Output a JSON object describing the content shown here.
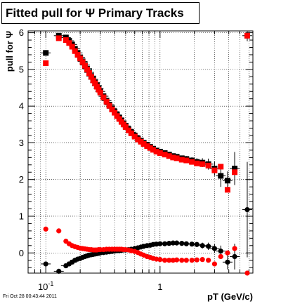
{
  "chart_data": {
    "type": "scatter",
    "title": "Fitted pull for  Ψ   Primary Tracks",
    "xlabel": "pT (GeV/c)",
    "ylabel": "pull for Ψ",
    "xscale": "log",
    "xlim": [
      0.07,
      6.5
    ],
    "ylim": [
      -0.55,
      6.05
    ],
    "yticks": [
      0,
      1,
      2,
      3,
      4,
      5,
      6
    ],
    "ytick_labels": [
      "0",
      "1",
      "2",
      "3",
      "4",
      "5",
      "6"
    ],
    "xticks_labeled": [
      0.1,
      1
    ],
    "xtick_labels": [
      {
        "base": "10",
        "exp": "-1"
      },
      {
        "base": "1",
        "exp": ""
      }
    ],
    "grid": true,
    "series": [
      {
        "color": "#000000",
        "marker": "square",
        "x": [
          0.1,
          0.13,
          0.15,
          0.16,
          0.17,
          0.18,
          0.19,
          0.2,
          0.21,
          0.22,
          0.23,
          0.24,
          0.25,
          0.26,
          0.27,
          0.28,
          0.29,
          0.3,
          0.32,
          0.34,
          0.36,
          0.38,
          0.4,
          0.42,
          0.44,
          0.46,
          0.48,
          0.5,
          0.53,
          0.56,
          0.6,
          0.64,
          0.68,
          0.72,
          0.77,
          0.82,
          0.87,
          0.93,
          1.0,
          1.1,
          1.2,
          1.3,
          1.4,
          1.55,
          1.7,
          1.9,
          2.1,
          2.35,
          2.65,
          3.0,
          3.4,
          3.9,
          4.5,
          5.8
        ],
        "y": [
          5.45,
          5.92,
          5.87,
          5.78,
          5.68,
          5.56,
          5.45,
          5.33,
          5.22,
          5.12,
          5.02,
          4.92,
          4.82,
          4.73,
          4.64,
          4.56,
          4.48,
          4.4,
          4.27,
          4.15,
          4.04,
          3.94,
          3.85,
          3.76,
          3.68,
          3.6,
          3.53,
          3.46,
          3.37,
          3.29,
          3.2,
          3.12,
          3.06,
          3.0,
          2.95,
          2.89,
          2.84,
          2.79,
          2.76,
          2.72,
          2.68,
          2.64,
          2.62,
          2.58,
          2.56,
          2.52,
          2.48,
          2.46,
          2.42,
          2.3,
          2.1,
          1.97,
          2.3,
          5.92
        ],
        "yerr": [
          0.06,
          0.06,
          0.05,
          0.04,
          0.04,
          0.04,
          0.04,
          0.03,
          0.03,
          0.03,
          0.03,
          0.03,
          0.03,
          0.03,
          0.03,
          0.03,
          0.03,
          0.03,
          0.03,
          0.03,
          0.03,
          0.03,
          0.03,
          0.03,
          0.03,
          0.03,
          0.03,
          0.03,
          0.03,
          0.03,
          0.04,
          0.04,
          0.04,
          0.04,
          0.04,
          0.05,
          0.05,
          0.05,
          0.05,
          0.06,
          0.06,
          0.06,
          0.07,
          0.07,
          0.08,
          0.09,
          0.1,
          0.12,
          0.15,
          0.2,
          0.3,
          0.25,
          0.45,
          0.15
        ]
      },
      {
        "color": "#ff0000",
        "marker": "square",
        "x": [
          0.1,
          0.13,
          0.15,
          0.16,
          0.17,
          0.18,
          0.19,
          0.2,
          0.21,
          0.22,
          0.23,
          0.24,
          0.25,
          0.26,
          0.27,
          0.28,
          0.29,
          0.3,
          0.32,
          0.34,
          0.36,
          0.38,
          0.4,
          0.42,
          0.44,
          0.46,
          0.48,
          0.5,
          0.53,
          0.56,
          0.6,
          0.64,
          0.68,
          0.72,
          0.77,
          0.82,
          0.87,
          0.93,
          1.0,
          1.1,
          1.2,
          1.3,
          1.4,
          1.55,
          1.7,
          1.9,
          2.1,
          2.35,
          2.65,
          3.0,
          3.4,
          3.9,
          4.5,
          5.8
        ],
        "y": [
          5.17,
          5.85,
          5.8,
          5.72,
          5.62,
          5.5,
          5.4,
          5.3,
          5.2,
          5.1,
          5.0,
          4.9,
          4.8,
          4.7,
          4.62,
          4.53,
          4.45,
          4.37,
          4.24,
          4.12,
          4.01,
          3.91,
          3.82,
          3.73,
          3.65,
          3.57,
          3.5,
          3.43,
          3.34,
          3.26,
          3.17,
          3.09,
          3.03,
          2.97,
          2.91,
          2.86,
          2.81,
          2.76,
          2.72,
          2.68,
          2.64,
          2.6,
          2.58,
          2.54,
          2.52,
          2.48,
          2.44,
          2.42,
          2.38,
          2.25,
          2.35,
          1.72,
          2.2,
          5.92
        ]
      },
      {
        "color": "#000000",
        "marker": "circle",
        "x": [
          0.1,
          0.13,
          0.15,
          0.16,
          0.17,
          0.18,
          0.19,
          0.2,
          0.21,
          0.22,
          0.23,
          0.24,
          0.25,
          0.26,
          0.27,
          0.28,
          0.29,
          0.3,
          0.32,
          0.34,
          0.36,
          0.38,
          0.4,
          0.42,
          0.44,
          0.46,
          0.48,
          0.5,
          0.53,
          0.56,
          0.6,
          0.64,
          0.68,
          0.72,
          0.77,
          0.82,
          0.87,
          0.93,
          1.0,
          1.1,
          1.2,
          1.3,
          1.4,
          1.55,
          1.7,
          1.9,
          2.1,
          2.35,
          2.65,
          3.0,
          3.4,
          3.9,
          4.5,
          5.8
        ],
        "y": [
          -0.3,
          -0.5,
          -0.35,
          -0.3,
          -0.25,
          -0.2,
          -0.17,
          -0.15,
          -0.12,
          -0.1,
          -0.08,
          -0.06,
          -0.05,
          -0.04,
          -0.03,
          -0.02,
          -0.01,
          0.0,
          0.01,
          0.02,
          0.03,
          0.04,
          0.05,
          0.06,
          0.06,
          0.07,
          0.08,
          0.08,
          0.09,
          0.1,
          0.12,
          0.14,
          0.16,
          0.18,
          0.2,
          0.21,
          0.23,
          0.24,
          0.25,
          0.25,
          0.26,
          0.27,
          0.27,
          0.26,
          0.25,
          0.24,
          0.23,
          0.2,
          0.18,
          0.12,
          0.05,
          -0.25,
          -0.1,
          1.18
        ],
        "yerr": [
          0.04,
          0.04,
          0.03,
          0.03,
          0.03,
          0.03,
          0.03,
          0.02,
          0.02,
          0.02,
          0.02,
          0.02,
          0.02,
          0.02,
          0.02,
          0.02,
          0.02,
          0.02,
          0.02,
          0.02,
          0.02,
          0.02,
          0.02,
          0.02,
          0.02,
          0.02,
          0.02,
          0.02,
          0.02,
          0.02,
          0.03,
          0.03,
          0.03,
          0.03,
          0.03,
          0.03,
          0.03,
          0.04,
          0.04,
          0.04,
          0.04,
          0.05,
          0.05,
          0.05,
          0.06,
          0.06,
          0.07,
          0.08,
          0.1,
          0.12,
          0.15,
          0.2,
          0.35,
          1.3
        ]
      },
      {
        "color": "#ff0000",
        "marker": "circle",
        "x": [
          0.1,
          0.13,
          0.15,
          0.16,
          0.17,
          0.18,
          0.19,
          0.2,
          0.21,
          0.22,
          0.23,
          0.24,
          0.25,
          0.26,
          0.27,
          0.28,
          0.29,
          0.3,
          0.32,
          0.34,
          0.36,
          0.38,
          0.4,
          0.42,
          0.44,
          0.46,
          0.48,
          0.5,
          0.53,
          0.56,
          0.6,
          0.64,
          0.68,
          0.72,
          0.77,
          0.82,
          0.87,
          0.93,
          1.0,
          1.1,
          1.2,
          1.3,
          1.4,
          1.55,
          1.7,
          1.9,
          2.1,
          2.35,
          2.65,
          3.0,
          3.4,
          3.9,
          4.5,
          5.8
        ],
        "y": [
          0.65,
          0.6,
          0.32,
          0.25,
          0.2,
          0.17,
          0.15,
          0.13,
          0.12,
          0.11,
          0.1,
          0.09,
          0.09,
          0.08,
          0.08,
          0.08,
          0.09,
          0.09,
          0.09,
          0.1,
          0.1,
          0.1,
          0.1,
          0.1,
          0.1,
          0.1,
          0.09,
          0.09,
          0.08,
          0.06,
          0.04,
          0.01,
          -0.03,
          -0.06,
          -0.1,
          -0.12,
          -0.15,
          -0.17,
          -0.18,
          -0.2,
          -0.2,
          -0.2,
          -0.19,
          -0.2,
          -0.2,
          -0.2,
          -0.19,
          -0.18,
          -0.2,
          -0.3,
          -0.1,
          0.0,
          0.12,
          -0.55
        ]
      }
    ]
  },
  "footer": {
    "timestamp": "Fri Oct 28 00:43:44 2011"
  }
}
